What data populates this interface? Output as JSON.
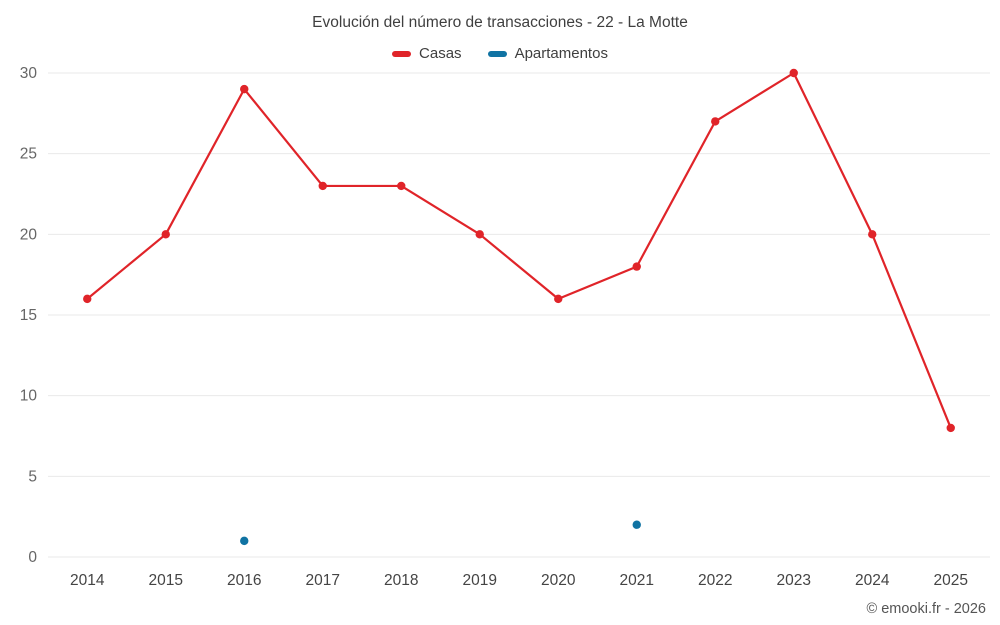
{
  "footer": {
    "credit": "© emooki.fr - 2026"
  },
  "chart_data": {
    "type": "line",
    "title": "Evolución del número de transacciones - 22 - La Motte",
    "xlabel": "",
    "ylabel": "",
    "categories": [
      "2014",
      "2015",
      "2016",
      "2017",
      "2018",
      "2019",
      "2020",
      "2021",
      "2022",
      "2023",
      "2024",
      "2025"
    ],
    "series": [
      {
        "name": "Casas",
        "color": "#e02429",
        "values": [
          16,
          20,
          29,
          23,
          23,
          20,
          16,
          18,
          27,
          30,
          20,
          8
        ]
      },
      {
        "name": "Apartamentos",
        "color": "#1073a3",
        "values": [
          null,
          null,
          1,
          null,
          null,
          null,
          null,
          2,
          null,
          null,
          null,
          null
        ]
      }
    ],
    "ylim": [
      0,
      30
    ],
    "yticks": [
      0,
      5,
      10,
      15,
      20,
      25,
      30
    ],
    "grid": "horizontal",
    "legend_position": "top",
    "grid_color": "#e9e9e9",
    "ytick_color": "#666666",
    "xtick_color": "#444444"
  }
}
